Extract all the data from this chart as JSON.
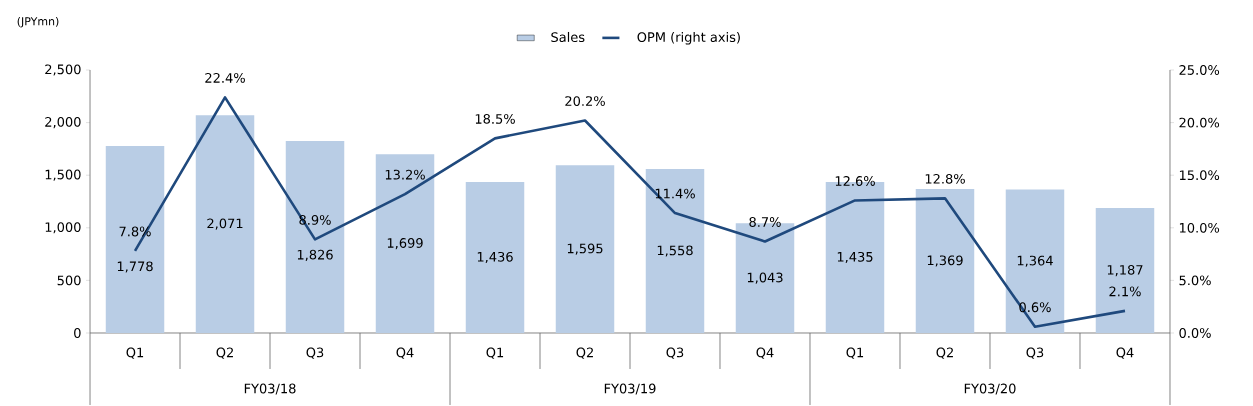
{
  "chart_data": {
    "type": "bar",
    "ylabel": "(JPYmn)",
    "categories": [
      "Q1",
      "Q2",
      "Q3",
      "Q4",
      "Q1",
      "Q2",
      "Q3",
      "Q4",
      "Q1",
      "Q2",
      "Q3",
      "Q4"
    ],
    "series": [
      {
        "name": "Sales",
        "color": "#b9cde5",
        "values": [
          1778,
          2071,
          1826,
          1699,
          1436,
          1595,
          1558,
          1043,
          1435,
          1369,
          1364,
          1187
        ],
        "value_labels": [
          "1,778",
          "2,071",
          "1,826",
          "1,699",
          "1,436",
          "1,595",
          "1,558",
          "1,043",
          "1,435",
          "1,369",
          "1,364",
          "1,187"
        ]
      },
      {
        "name": "OPM (right axis)",
        "type": "line",
        "axis": "y2",
        "color": "#1f497d",
        "values": [
          7.8,
          22.4,
          8.9,
          13.2,
          18.5,
          20.2,
          11.4,
          8.7,
          12.6,
          12.8,
          0.6,
          2.1
        ],
        "value_labels": [
          "7.8%",
          "22.4%",
          "8.9%",
          "13.2%",
          "18.5%",
          "20.2%",
          "11.4%",
          "8.7%",
          "12.6%",
          "12.8%",
          "0.6%",
          "2.1%"
        ]
      }
    ],
    "ylim": [
      0,
      2500
    ],
    "yticks": [
      0,
      500,
      {
        "value": 1000,
        "label": "1,000"
      },
      {
        "value": 1500,
        "label": "1,500"
      },
      {
        "value": 2000,
        "label": "2,000"
      },
      {
        "value": 2500,
        "label": "2,500"
      }
    ],
    "y2lim": [
      0,
      25
    ],
    "y2ticks": [
      {
        "value": 0,
        "label": "0.0%"
      },
      {
        "value": 5,
        "label": "5.0%"
      },
      {
        "value": 10,
        "label": "10.0%"
      },
      {
        "value": 15,
        "label": "15.0%"
      },
      {
        "value": 20,
        "label": "20.0%"
      },
      {
        "value": 25,
        "label": "25.0%"
      }
    ],
    "annotations": [
      "FY03/18",
      "FY03/19",
      "FY03/20"
    ],
    "legend": "top",
    "grid": false,
    "marker": "none",
    "line_style": "solid"
  }
}
